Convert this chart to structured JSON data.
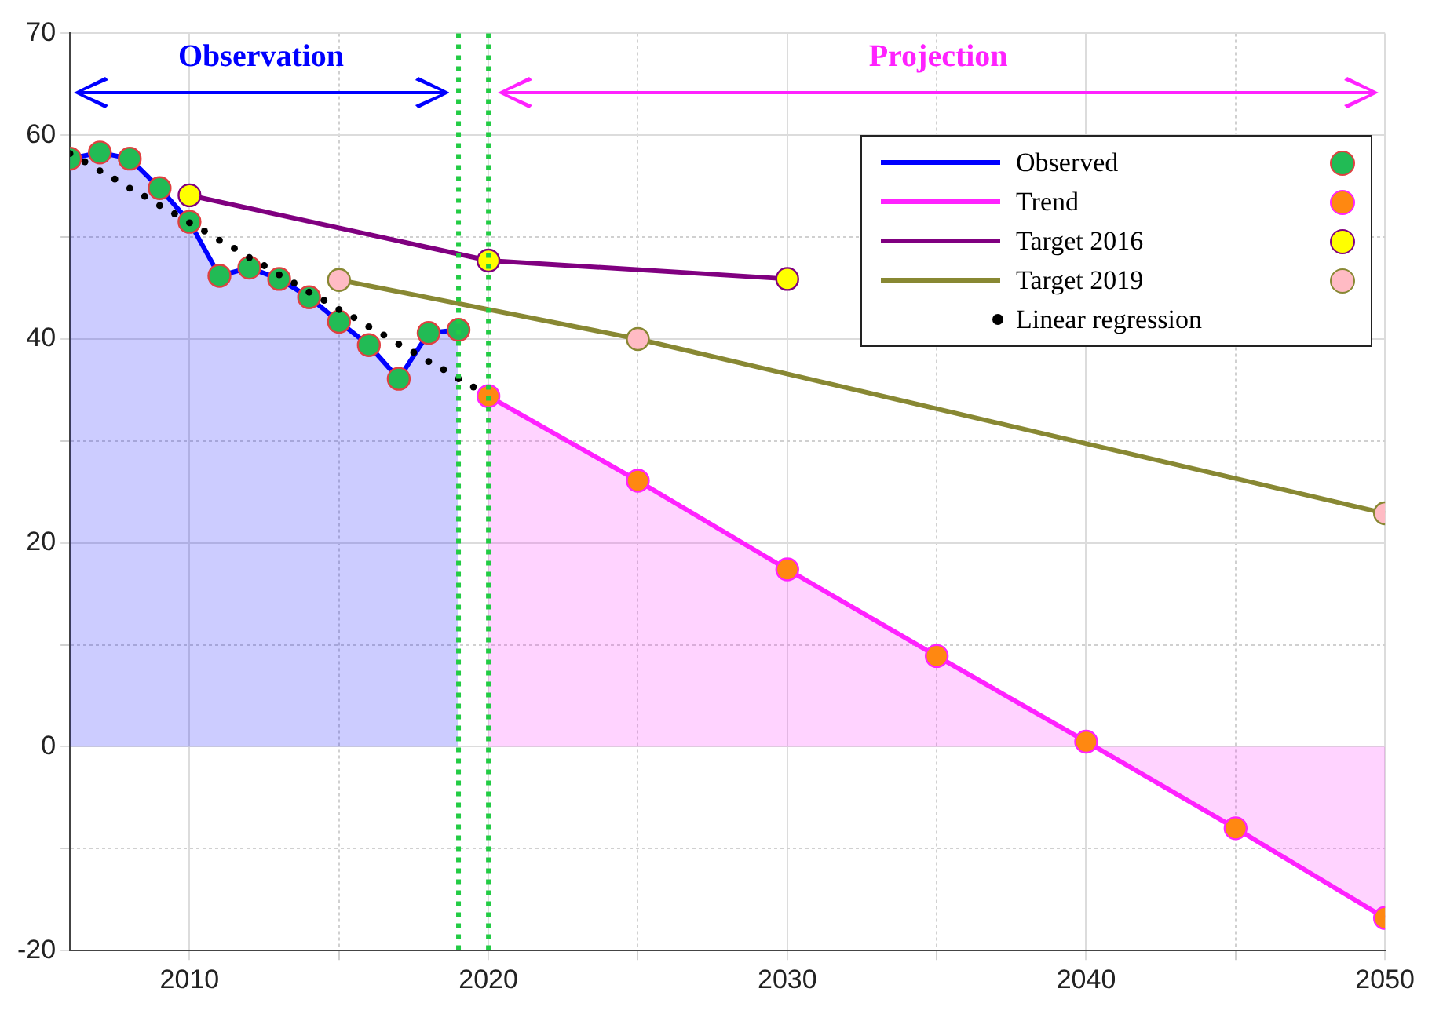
{
  "chart_data": {
    "type": "line",
    "xlim": [
      2006,
      2050
    ],
    "ylim": [
      -20,
      70
    ],
    "xticks": [
      2010,
      {
        "value": 2015,
        "label": null
      },
      2020,
      {
        "value": 2025,
        "label": null
      },
      2030,
      {
        "value": 2035,
        "label": null
      },
      2040,
      {
        "value": 2045,
        "label": null
      },
      2050
    ],
    "yticks": [
      -20,
      {
        "value": -10,
        "label": null
      },
      0,
      {
        "value": 10,
        "label": null
      },
      20,
      {
        "value": 30,
        "label": null
      },
      40,
      {
        "value": 50,
        "label": null
      },
      60,
      70
    ],
    "grid": true,
    "legend": "top right",
    "marker": "circle",
    "series": [
      {
        "name": "Observed",
        "type": "area",
        "color": "#0000ff",
        "x": [
          2006,
          2007,
          2008,
          2009,
          2010,
          2011,
          2012,
          2013,
          2014,
          2015,
          2016,
          2017,
          2018,
          2019
        ],
        "values": [
          57.7,
          58.3,
          57.7,
          54.8,
          51.5,
          46.2,
          47.0,
          45.9,
          44.1,
          41.7,
          39.4,
          36.1,
          40.6,
          40.9
        ],
        "colors": [
          "#22bb55",
          "#22bb55",
          "#22bb55",
          "#22bb55",
          "#22bb55",
          "#22bb55",
          "#22bb55",
          "#22bb55",
          "#22bb55",
          "#22bb55",
          "#22bb55",
          "#22bb55",
          "#22bb55",
          "#22bb55"
        ]
      },
      {
        "name": "Trend",
        "type": "area",
        "color": "#ff22ff",
        "x": [
          2020,
          2025,
          2030,
          2035,
          2040,
          2045,
          2050
        ],
        "values": [
          34.4,
          26.1,
          17.4,
          8.9,
          0.5,
          -8.0,
          -16.8
        ],
        "colors": [
          "#ff8811",
          "#ff8811",
          "#ff8811",
          "#ff8811",
          "#ff8811",
          "#ff8811",
          "#ff8811"
        ]
      },
      {
        "name": "Target 2016",
        "color": "#800080",
        "x": [
          2010,
          2020,
          2030
        ],
        "values": [
          54.1,
          47.7,
          45.9
        ],
        "colors": [
          "#ffff00",
          "#ffff00",
          "#ffff00"
        ]
      },
      {
        "name": "Target 2019",
        "color": "#888833",
        "x": [
          2015,
          2025,
          2050
        ],
        "values": [
          45.8,
          40.0,
          22.9
        ],
        "colors": [
          "#ffbbc4",
          "#ffbbc4",
          "#ffbbc4"
        ]
      },
      {
        "name": "Linear regression",
        "type": "scatter",
        "color": "#000000",
        "x": [
          2006,
          2006.5,
          2007,
          2007.5,
          2008,
          2008.5,
          2009,
          2009.5,
          2010,
          2010.5,
          2011,
          2011.5,
          2012,
          2012.5,
          2013,
          2013.5,
          2014,
          2014.5,
          2015,
          2015.5,
          2016,
          2016.5,
          2017,
          2017.5,
          2018,
          2018.5,
          2019,
          2019.5
        ],
        "values": [
          58.2,
          57.4,
          56.5,
          55.7,
          54.8,
          54.0,
          53.1,
          52.3,
          51.4,
          50.6,
          49.7,
          48.9,
          48.0,
          47.2,
          46.3,
          45.5,
          44.6,
          43.8,
          42.9,
          42.1,
          41.2,
          40.4,
          39.5,
          38.7,
          37.8,
          37.0,
          36.1,
          35.3
        ]
      }
    ],
    "ref_lines": [
      {
        "axis": "x",
        "value": 2019,
        "color": "#22cc44",
        "line_style": "dotted"
      },
      {
        "axis": "x",
        "value": 2020,
        "color": "#22cc44",
        "line_style": "dotted"
      }
    ],
    "annotations": [
      "Observation",
      "Projection"
    ]
  }
}
